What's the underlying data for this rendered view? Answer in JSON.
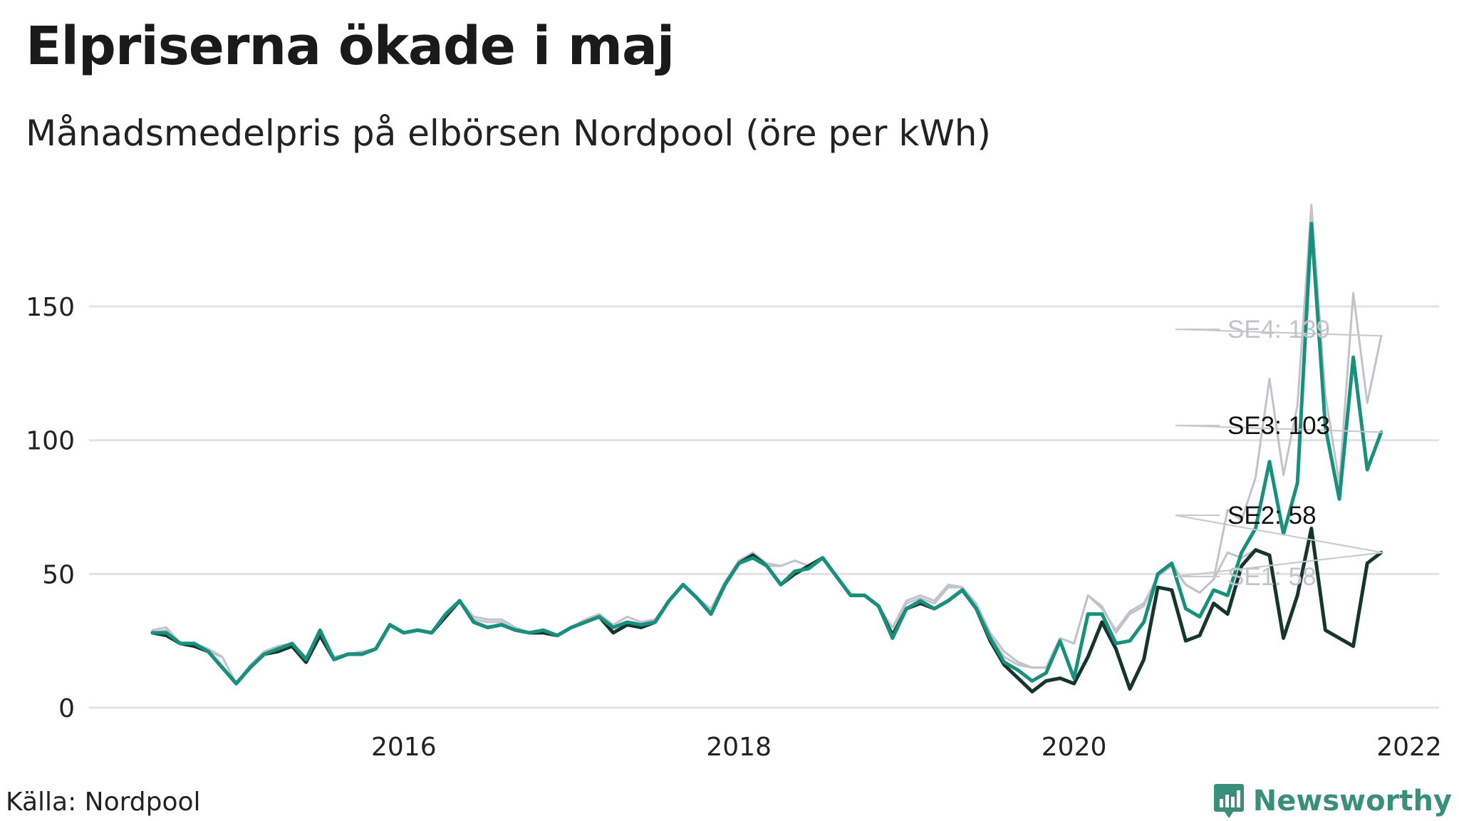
{
  "title": "Elpriserna ökade i maj",
  "subtitle": "Månadsmedelpris på elbörsen Nordpool (öre per kWh)",
  "source": "Källa: Nordpool",
  "logo": {
    "text": "Newsworthy",
    "icon": "newsworthy-logo-icon"
  },
  "colors": {
    "SE1": "#c3c1ca",
    "SE2": "#17362b",
    "SE3": "#17917d",
    "SE4": "#c3c1ca",
    "grid": "#e2e2e2",
    "text": "#222222"
  },
  "chart_data": {
    "type": "line",
    "title": "Elpriserna ökade i maj",
    "subtitle": "Månadsmedelpris på elbörsen Nordpool (öre per kWh)",
    "x_start": "2015-01",
    "x_end": "2022-05",
    "x_ticks": [
      "2016",
      "2018",
      "2020",
      "2022"
    ],
    "y_ticks": [
      0,
      50,
      100,
      150
    ],
    "ylim": [
      0,
      190
    ],
    "grid": "horizontal",
    "series": [
      {
        "name": "SE1",
        "label": "SE1: 58",
        "values": [
          28,
          29,
          24,
          23,
          21,
          19,
          9,
          16,
          21,
          23,
          24,
          19,
          28,
          19,
          20,
          21,
          22,
          31,
          28,
          29,
          28,
          34,
          40,
          33,
          32,
          32,
          29,
          28,
          28,
          27,
          30,
          33,
          35,
          31,
          34,
          32,
          33,
          40,
          46,
          41,
          36,
          46,
          55,
          58,
          54,
          53,
          55,
          53,
          56,
          49,
          42,
          42,
          38,
          28,
          39,
          41,
          39,
          45,
          45,
          38,
          27,
          19,
          16,
          15,
          15,
          26,
          24,
          42,
          38,
          28,
          35,
          38,
          49,
          53,
          46,
          43,
          48,
          58,
          56,
          59,
          57,
          26,
          42,
          67,
          29,
          26,
          23,
          54,
          58
        ]
      },
      {
        "name": "SE2",
        "label": "SE2: 58",
        "values": [
          28,
          27,
          24,
          23,
          21,
          15,
          9,
          15,
          20,
          21,
          23,
          17,
          27,
          18,
          20,
          20,
          22,
          31,
          28,
          29,
          28,
          34,
          40,
          32,
          30,
          31,
          29,
          28,
          28,
          27,
          30,
          32,
          34,
          28,
          31,
          30,
          32,
          40,
          46,
          41,
          35,
          46,
          54,
          57,
          53,
          46,
          50,
          53,
          56,
          49,
          42,
          42,
          38,
          27,
          37,
          39,
          37,
          40,
          44,
          37,
          25,
          16,
          11,
          6,
          10,
          11,
          9,
          19,
          32,
          22,
          7,
          18,
          45,
          44,
          25,
          27,
          39,
          35,
          53,
          59,
          57,
          26,
          42,
          67,
          29,
          26,
          23,
          54,
          58
        ]
      },
      {
        "name": "SE3",
        "label": "SE3: 103",
        "values": [
          28,
          28,
          24,
          24,
          21,
          15,
          9,
          15,
          20,
          22,
          24,
          18,
          29,
          18,
          20,
          20,
          22,
          31,
          28,
          29,
          28,
          35,
          40,
          32,
          30,
          31,
          29,
          28,
          29,
          27,
          30,
          32,
          34,
          30,
          32,
          31,
          32,
          40,
          46,
          41,
          35,
          46,
          54,
          56,
          53,
          46,
          51,
          52,
          56,
          49,
          42,
          42,
          38,
          26,
          37,
          40,
          37,
          40,
          44,
          37,
          26,
          17,
          14,
          10,
          13,
          25,
          11,
          35,
          35,
          24,
          25,
          32,
          50,
          54,
          37,
          34,
          44,
          42,
          58,
          67,
          92,
          65,
          84,
          181,
          105,
          78,
          131,
          89,
          103
        ]
      },
      {
        "name": "SE4",
        "label": "SE4: 139",
        "values": [
          29,
          30,
          24,
          24,
          22,
          19,
          9,
          16,
          21,
          23,
          24,
          19,
          28,
          19,
          20,
          20,
          22,
          31,
          28,
          29,
          28,
          35,
          40,
          34,
          33,
          33,
          30,
          28,
          29,
          27,
          30,
          33,
          35,
          31,
          34,
          32,
          33,
          40,
          46,
          41,
          37,
          47,
          55,
          58,
          53,
          53,
          55,
          53,
          56,
          49,
          42,
          42,
          38,
          30,
          40,
          42,
          40,
          46,
          45,
          39,
          28,
          21,
          17,
          15,
          15,
          26,
          24,
          42,
          37,
          29,
          36,
          39,
          49,
          54,
          46,
          43,
          48,
          74,
          70,
          86,
          123,
          87,
          113,
          188,
          117,
          84,
          155,
          114,
          139
        ]
      }
    ]
  }
}
